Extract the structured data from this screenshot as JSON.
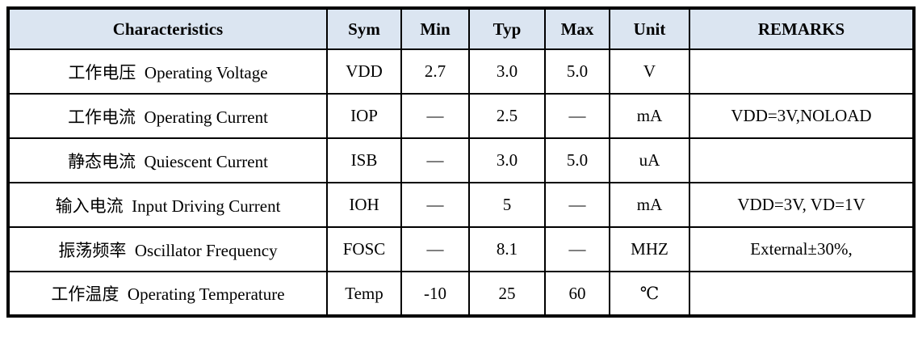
{
  "table": {
    "header_bg": "#dbe5f1",
    "border_color": "#000000",
    "columns": [
      {
        "key": "characteristics",
        "label": "Characteristics"
      },
      {
        "key": "sym",
        "label": "Sym"
      },
      {
        "key": "min",
        "label": "Min"
      },
      {
        "key": "typ",
        "label": "Typ"
      },
      {
        "key": "max",
        "label": "Max"
      },
      {
        "key": "unit",
        "label": "Unit"
      },
      {
        "key": "remarks",
        "label": "REMARKS"
      }
    ],
    "rows": [
      {
        "characteristics": "工作电压  Operating Voltage",
        "sym": "VDD",
        "min": "2.7",
        "typ": "3.0",
        "max": "5.0",
        "unit": "V",
        "remarks": ""
      },
      {
        "characteristics": "工作电流  Operating Current",
        "sym": "IOP",
        "min": "—",
        "typ": "2.5",
        "max": "—",
        "unit": "mA",
        "remarks": "VDD=3V,NOLOAD"
      },
      {
        "characteristics": "静态电流  Quiescent Current",
        "sym": "ISB",
        "min": "—",
        "typ": "3.0",
        "max": "5.0",
        "unit": "uA",
        "remarks": ""
      },
      {
        "characteristics": "输入电流  Input Driving Current",
        "sym": "IOH",
        "min": "—",
        "typ": "5",
        "max": "—",
        "unit": "mA",
        "remarks": "VDD=3V, VD=1V"
      },
      {
        "characteristics": "振荡频率  Oscillator Frequency",
        "sym": "FOSC",
        "min": "—",
        "typ": "8.1",
        "max": "—",
        "unit": "MHZ",
        "remarks": "External±30%,"
      },
      {
        "characteristics": "工作温度  Operating Temperature",
        "sym": "Temp",
        "min": "-10",
        "typ": "25",
        "max": "60",
        "unit": "℃",
        "remarks": ""
      }
    ]
  }
}
